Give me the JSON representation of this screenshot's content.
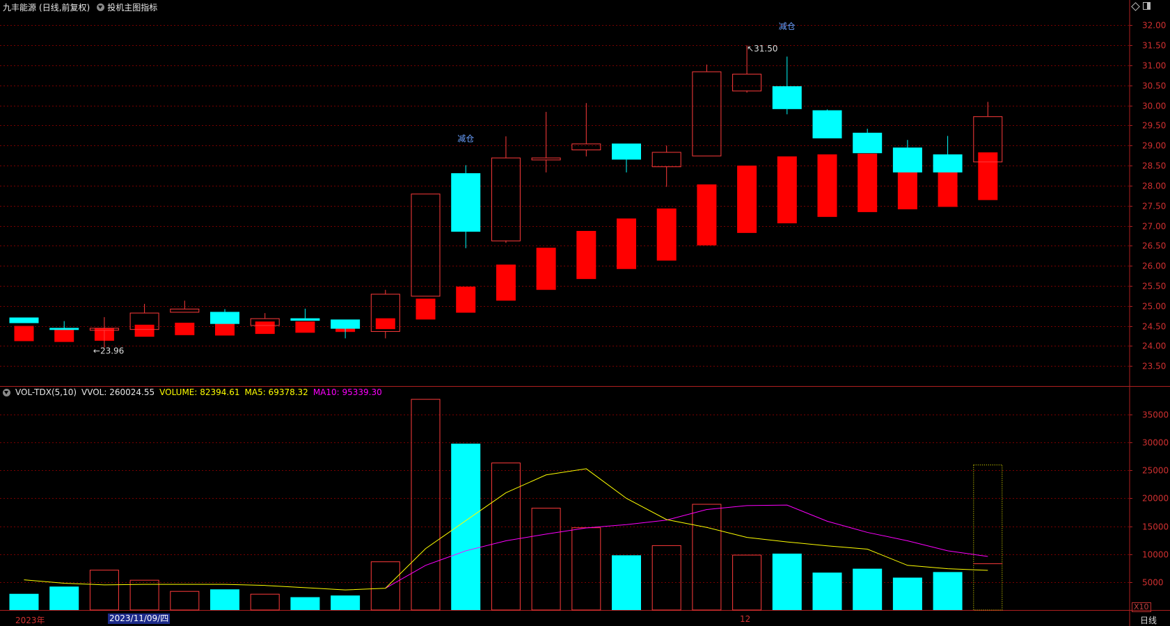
{
  "header": {
    "stock_name": "九丰能源",
    "period_label": "(日线,前复权)",
    "indicator_link": "投机主图指标"
  },
  "volume_header": {
    "name": "VOL-TDX(5,10)",
    "vvol": "VVOL: 260024.55",
    "volume": "VOLUME: 82394.61",
    "ma5": "MA5: 69378.32",
    "ma10": "MA10: 95339.30"
  },
  "bottom_bar": {
    "year": "2023年",
    "cursor_date": "2023/11/09/四",
    "month": "12",
    "zoom": "X10",
    "period": "日线"
  },
  "colors": {
    "up": "#ff3b3b",
    "down": "#00ffff",
    "overlay": "#ff0000",
    "ma5": "#ffff00",
    "ma10": "#ff00ff",
    "annotation": "#6aa0ff",
    "grid": "#7a0000",
    "axis_text": "#d03030"
  },
  "chart_data": [
    {
      "type": "candlestick",
      "ylim": [
        23.0,
        32.25
      ],
      "yticks": [
        "23.50",
        "24.00",
        "24.50",
        "25.00",
        "25.50",
        "26.00",
        "26.50",
        "27.00",
        "27.50",
        "28.00",
        "28.50",
        "29.00",
        "29.50",
        "30.00",
        "30.50",
        "31.00",
        "31.50",
        "32.00"
      ],
      "candles": [
        {
          "o": 24.71,
          "c": 24.57,
          "h": 24.71,
          "l": 24.57
        },
        {
          "o": 24.45,
          "c": 24.4,
          "h": 24.62,
          "l": 24.4
        },
        {
          "o": 24.4,
          "c": 24.45,
          "h": 24.72,
          "l": 23.96
        },
        {
          "o": 24.42,
          "c": 24.83,
          "h": 25.05,
          "l": 24.42
        },
        {
          "o": 24.85,
          "c": 24.93,
          "h": 25.13,
          "l": 24.85
        },
        {
          "o": 24.85,
          "c": 24.55,
          "h": 24.92,
          "l": 24.55
        },
        {
          "o": 24.52,
          "c": 24.69,
          "h": 24.82,
          "l": 24.52
        },
        {
          "o": 24.69,
          "c": 24.63,
          "h": 24.93,
          "l": 24.63
        },
        {
          "o": 24.66,
          "c": 24.43,
          "h": 24.66,
          "l": 24.19
        },
        {
          "o": 24.37,
          "c": 25.3,
          "h": 25.4,
          "l": 24.19
        },
        {
          "o": 25.25,
          "c": 27.8,
          "h": 27.8,
          "l": 25.25
        },
        {
          "o": 28.31,
          "c": 26.85,
          "h": 28.51,
          "l": 26.44
        },
        {
          "o": 26.63,
          "c": 28.7,
          "h": 29.23,
          "l": 26.57
        },
        {
          "o": 28.65,
          "c": 28.7,
          "h": 29.84,
          "l": 28.33
        },
        {
          "o": 28.9,
          "c": 29.05,
          "h": 30.06,
          "l": 28.73
        },
        {
          "o": 29.05,
          "c": 28.65,
          "h": 29.05,
          "l": 28.33
        },
        {
          "o": 28.48,
          "c": 28.84,
          "h": 29.0,
          "l": 27.97
        },
        {
          "o": 28.75,
          "c": 30.85,
          "h": 31.02,
          "l": 28.75
        },
        {
          "o": 30.37,
          "c": 30.79,
          "h": 31.5,
          "l": 30.32
        },
        {
          "o": 30.48,
          "c": 29.91,
          "h": 31.22,
          "l": 29.78
        },
        {
          "o": 29.88,
          "c": 29.18,
          "h": 29.9,
          "l": 29.18
        },
        {
          "o": 29.32,
          "c": 28.81,
          "h": 29.42,
          "l": 28.81
        },
        {
          "o": 28.95,
          "c": 28.33,
          "h": 29.14,
          "l": 28.33
        },
        {
          "o": 28.78,
          "c": 28.33,
          "h": 29.24,
          "l": 28.33
        },
        {
          "o": 28.6,
          "c": 29.73,
          "h": 30.09,
          "l": 28.6
        }
      ],
      "overlay_bars": [
        {
          "top": 24.5,
          "bottom": 24.12
        },
        {
          "top": 24.45,
          "bottom": 24.1
        },
        {
          "top": 24.45,
          "bottom": 24.13
        },
        {
          "top": 24.53,
          "bottom": 24.23
        },
        {
          "top": 24.58,
          "bottom": 24.27
        },
        {
          "top": 24.57,
          "bottom": 24.26
        },
        {
          "top": 24.61,
          "bottom": 24.3
        },
        {
          "top": 24.61,
          "bottom": 24.33
        },
        {
          "top": 24.6,
          "bottom": 24.35
        },
        {
          "top": 24.69,
          "bottom": 24.42
        },
        {
          "top": 25.18,
          "bottom": 24.66
        },
        {
          "top": 25.48,
          "bottom": 24.83
        },
        {
          "top": 26.03,
          "bottom": 25.13
        },
        {
          "top": 26.45,
          "bottom": 25.4
        },
        {
          "top": 26.87,
          "bottom": 25.67
        },
        {
          "top": 27.18,
          "bottom": 25.92
        },
        {
          "top": 27.43,
          "bottom": 26.13
        },
        {
          "top": 28.03,
          "bottom": 26.51
        },
        {
          "top": 28.5,
          "bottom": 26.82
        },
        {
          "top": 28.73,
          "bottom": 27.06
        },
        {
          "top": 28.78,
          "bottom": 27.22
        },
        {
          "top": 28.8,
          "bottom": 27.34
        },
        {
          "top": 28.72,
          "bottom": 27.41
        },
        {
          "top": 28.64,
          "bottom": 27.47
        },
        {
          "top": 28.83,
          "bottom": 27.64
        }
      ],
      "annotations": [
        {
          "index": 2,
          "price": 23.96,
          "text": "23.96",
          "pos": "below"
        },
        {
          "index": 18,
          "price": 31.5,
          "text": "31.50",
          "pos": "right"
        },
        {
          "index": 11,
          "price": 29.1,
          "text": "减仓",
          "pos": "label"
        },
        {
          "index": 19,
          "price": 31.9,
          "text": "减仓",
          "pos": "label"
        }
      ]
    },
    {
      "type": "bar",
      "ylim": [
        0,
        38000
      ],
      "yticks": [
        "5000",
        "10000",
        "15000",
        "20000",
        "25000",
        "30000",
        "35000"
      ],
      "values": [
        2900,
        4200,
        7200,
        5400,
        3400,
        3700,
        2900,
        2300,
        2600,
        8700,
        37800,
        29800,
        26400,
        18300,
        14800,
        9800,
        11600,
        19000,
        9900,
        10100,
        6700,
        7400,
        5800,
        6800,
        26000
      ],
      "ma5": [
        5400,
        4800,
        4500,
        4600,
        4600,
        4600,
        4400,
        4000,
        3600,
        3900,
        11000,
        16000,
        21000,
        24200,
        25300,
        20000,
        16200,
        14800,
        13000,
        12200,
        11500,
        10900,
        8000,
        7400,
        7100
      ],
      "ma10": [
        null,
        null,
        null,
        null,
        null,
        null,
        null,
        null,
        null,
        3900,
        8000,
        10600,
        12400,
        13600,
        14700,
        15300,
        16100,
        18000,
        18700,
        18800,
        15900,
        13900,
        12400,
        10600,
        9600
      ],
      "last_dotted": true
    }
  ]
}
